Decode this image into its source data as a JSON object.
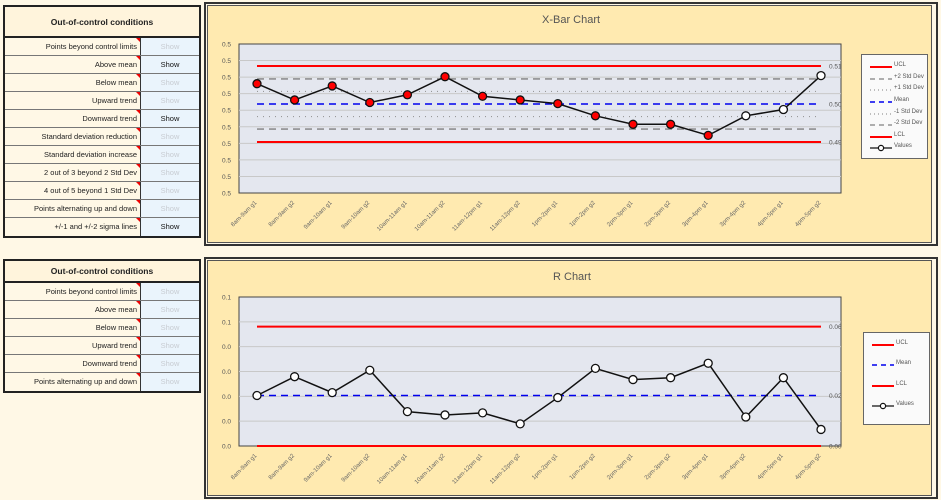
{
  "xbar_conditions": {
    "header": "Out-of-control conditions",
    "rows": [
      {
        "label": "Points beyond control limits",
        "button": "Show",
        "active": false
      },
      {
        "label": "Above mean",
        "button": "Show",
        "active": true
      },
      {
        "label": "Below mean",
        "button": "Show",
        "active": false
      },
      {
        "label": "Upward trend",
        "button": "Show",
        "active": false
      },
      {
        "label": "Downward trend",
        "button": "Show",
        "active": true
      },
      {
        "label": "Standard deviation reduction",
        "button": "Show",
        "active": false
      },
      {
        "label": "Standard deviation increase",
        "button": "Show",
        "active": false
      },
      {
        "label": "2 out of 3 beyond 2 Std Dev",
        "button": "Show",
        "active": false
      },
      {
        "label": "4 out of 5 beyond 1 Std Dev",
        "button": "Show",
        "active": false
      },
      {
        "label": "Points alternating up and down",
        "button": "Show",
        "active": false
      },
      {
        "label": "+/-1 and +/-2 sigma lines",
        "button": "Show",
        "active": true
      }
    ]
  },
  "r_conditions": {
    "header": "Out-of-control conditions",
    "rows": [
      {
        "label": "Points beyond control limits",
        "button": "Show",
        "active": false
      },
      {
        "label": "Above mean",
        "button": "Show",
        "active": false
      },
      {
        "label": "Below mean",
        "button": "Show",
        "active": false
      },
      {
        "label": "Upward trend",
        "button": "Show",
        "active": false
      },
      {
        "label": "Downward trend",
        "button": "Show",
        "active": false
      },
      {
        "label": "Points alternating up and down",
        "button": "Show",
        "active": false
      }
    ]
  },
  "colors": {
    "limit_line": "#ff0000",
    "mean_line": "#0000ee",
    "sigma_line": "#808080",
    "values_line": "#111111",
    "highlight_marker": "#ff0000",
    "normal_marker": "#ffffff",
    "plot_bg": "#e4e7ef",
    "panel_bg": "#ffeab0"
  },
  "chart_data": [
    {
      "type": "line",
      "title": "X-Bar Chart",
      "xlabel": "",
      "ylabel": "",
      "categories": [
        "8am-9am g1",
        "8am-9am g2",
        "9am-10am g1",
        "9am-10am g2",
        "10am-11am g1",
        "10am-11am g2",
        "11am-12pm g1",
        "11am-12pm g2",
        "1pm-2pm g1",
        "1pm-2pm g2",
        "2pm-3pm g1",
        "2pm-3pm g2",
        "3pm-4pm g1",
        "3pm-4pm g2",
        "4pm-5pm g1",
        "4pm-5pm g2"
      ],
      "y_tick_labels": [
        "0.5",
        "0.5",
        "0.5",
        "0.5",
        "0.5",
        "0.5",
        "0.5",
        "0.5",
        "0.5",
        "0.5"
      ],
      "right_labels": {
        "ucl": "0.51",
        "mean": "0.50",
        "lcl": "0.49"
      },
      "grid": true,
      "legend_position": "right",
      "legend": [
        "UCL",
        "+2 Std Dev",
        "+1 Std Dev",
        "Mean",
        "-1 Std Dev",
        "-2 Std Dev",
        "LCL",
        "Values"
      ],
      "limits": {
        "ucl": 0.5103,
        "plus2sd": 0.5068,
        "plus1sd": 0.5034,
        "mean": 0.5,
        "minus1sd": 0.4966,
        "minus2sd": 0.4932,
        "lcl": 0.4897
      },
      "series": [
        {
          "name": "Values",
          "values": [
            0.5055,
            0.5011,
            0.5049,
            0.5004,
            0.5025,
            0.5074,
            0.5021,
            0.5011,
            0.5001,
            0.4968,
            0.4945,
            0.4945,
            0.4915,
            0.4968,
            0.4985,
            0.5077
          ],
          "highlighted": [
            true,
            true,
            true,
            true,
            true,
            true,
            true,
            true,
            true,
            true,
            true,
            true,
            true,
            false,
            false,
            false
          ]
        }
      ]
    },
    {
      "type": "line",
      "title": "R Chart",
      "xlabel": "",
      "ylabel": "",
      "categories": [
        "8am-9am g1",
        "8am-9am g2",
        "9am-10am g1",
        "9am-10am g2",
        "10am-11am g1",
        "10am-11am g2",
        "11am-12pm g1",
        "11am-12pm g2",
        "1pm-2pm g1",
        "1pm-2pm g2",
        "2pm-3pm g1",
        "2pm-3pm g2",
        "3pm-4pm g1",
        "3pm-4pm g2",
        "4pm-5pm g1",
        "4pm-5pm g2"
      ],
      "y_tick_labels": [
        "0.1",
        "0.1",
        "0.0",
        "0.0",
        "0.0",
        "0.0",
        "0.0"
      ],
      "right_labels": {
        "ucl": "0.06",
        "mean": "0.02",
        "lcl": "0.00"
      },
      "grid": true,
      "legend_position": "right",
      "legend": [
        "UCL",
        "Mean",
        "LCL",
        "Values"
      ],
      "ylim": [
        0,
        0.072
      ],
      "limits": {
        "ucl": 0.0577,
        "mean": 0.0244,
        "lcl": 0.0
      },
      "series": [
        {
          "name": "Values",
          "values": [
            0.0244,
            0.0335,
            0.0258,
            0.0366,
            0.0166,
            0.015,
            0.016,
            0.0107,
            0.0234,
            0.0375,
            0.0321,
            0.033,
            0.04,
            0.014,
            0.033,
            0.008
          ]
        }
      ]
    }
  ]
}
